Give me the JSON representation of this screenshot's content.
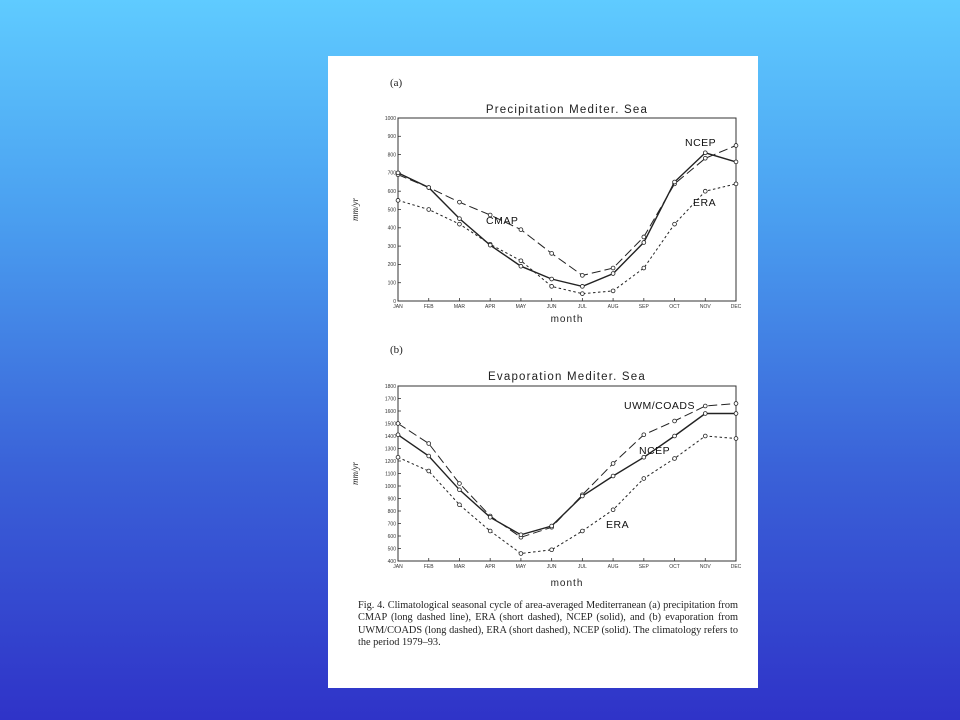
{
  "chart_data": [
    {
      "type": "line",
      "panel_label": "(a)",
      "title": "Precipitation  Mediter. Sea",
      "xlabel": "month",
      "ylabel": "mm/yr",
      "categories": [
        "JAN",
        "FEB",
        "MAR",
        "APR",
        "MAY",
        "JUN",
        "JUL",
        "AUG",
        "SEP",
        "OCT",
        "NOV",
        "DEC"
      ],
      "ylim": [
        0,
        1000
      ],
      "yticks": [
        0,
        100,
        200,
        300,
        400,
        500,
        600,
        700,
        800,
        900,
        1000
      ],
      "grid": false,
      "series": [
        {
          "name": "CMAP",
          "style": "long-dashed",
          "values": [
            690,
            620,
            540,
            470,
            390,
            260,
            140,
            180,
            350,
            640,
            780,
            850
          ]
        },
        {
          "name": "ERA",
          "style": "short-dashed",
          "values": [
            550,
            500,
            420,
            310,
            220,
            80,
            40,
            55,
            180,
            420,
            600,
            640
          ]
        },
        {
          "name": "NCEP",
          "style": "solid",
          "values": [
            700,
            620,
            450,
            305,
            190,
            120,
            80,
            150,
            320,
            650,
            810,
            760
          ]
        }
      ]
    },
    {
      "type": "line",
      "panel_label": "(b)",
      "title": "Evaporation  Mediter. Sea",
      "xlabel": "month",
      "ylabel": "mm/yr",
      "categories": [
        "JAN",
        "FEB",
        "MAR",
        "APR",
        "MAY",
        "JUN",
        "JUL",
        "AUG",
        "SEP",
        "OCT",
        "NOV",
        "DEC"
      ],
      "ylim": [
        400,
        1800
      ],
      "yticks": [
        400,
        500,
        600,
        700,
        800,
        900,
        1000,
        1100,
        1200,
        1300,
        1400,
        1500,
        1600,
        1700,
        1800
      ],
      "grid": false,
      "series": [
        {
          "name": "UWM/COADS",
          "style": "long-dashed",
          "values": [
            1500,
            1340,
            1020,
            760,
            590,
            670,
            930,
            1180,
            1410,
            1520,
            1640,
            1660
          ]
        },
        {
          "name": "ERA",
          "style": "short-dashed",
          "values": [
            1230,
            1120,
            850,
            640,
            460,
            490,
            640,
            810,
            1060,
            1220,
            1400,
            1380
          ]
        },
        {
          "name": "NCEP",
          "style": "solid",
          "values": [
            1410,
            1240,
            970,
            750,
            610,
            680,
            920,
            1080,
            1230,
            1400,
            1580,
            1580
          ]
        }
      ]
    }
  ],
  "caption": "Fig. 4. Climatological seasonal cycle of area-averaged Mediterranean (a) precipitation from CMAP (long dashed line), ERA (short dashed), NCEP (solid), and (b) evaporation from UWM/COADS (long dashed), ERA (short dashed), NCEP (solid). The climatology refers to the period 1979–93."
}
